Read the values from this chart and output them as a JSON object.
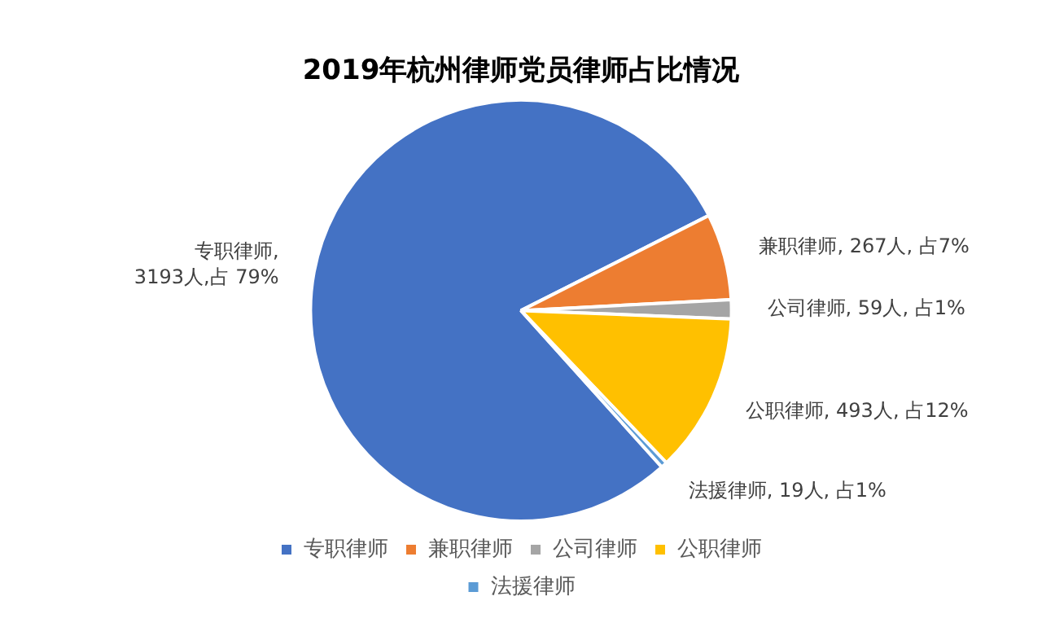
{
  "chart_data": {
    "type": "pie",
    "title": "2019年杭州律师党员律师占比情况",
    "categories": [
      "专职律师",
      "兼职律师",
      "公司律师",
      "公职律师",
      "法援律师"
    ],
    "values": [
      3193,
      267,
      59,
      493,
      19
    ],
    "colors": [
      "#4472c4",
      "#ed7d31",
      "#a5a5a5",
      "#ffc000",
      "#5b9bd5"
    ],
    "value_labels": [
      "专职律师,\n3193人,占 79%",
      "兼职律师, 267人, 占7%",
      "公司律师, 59人, 占1%",
      "公职律师, 493人, 占12%",
      "法援律师, 19人, 占1%"
    ],
    "legend": "bottom"
  }
}
